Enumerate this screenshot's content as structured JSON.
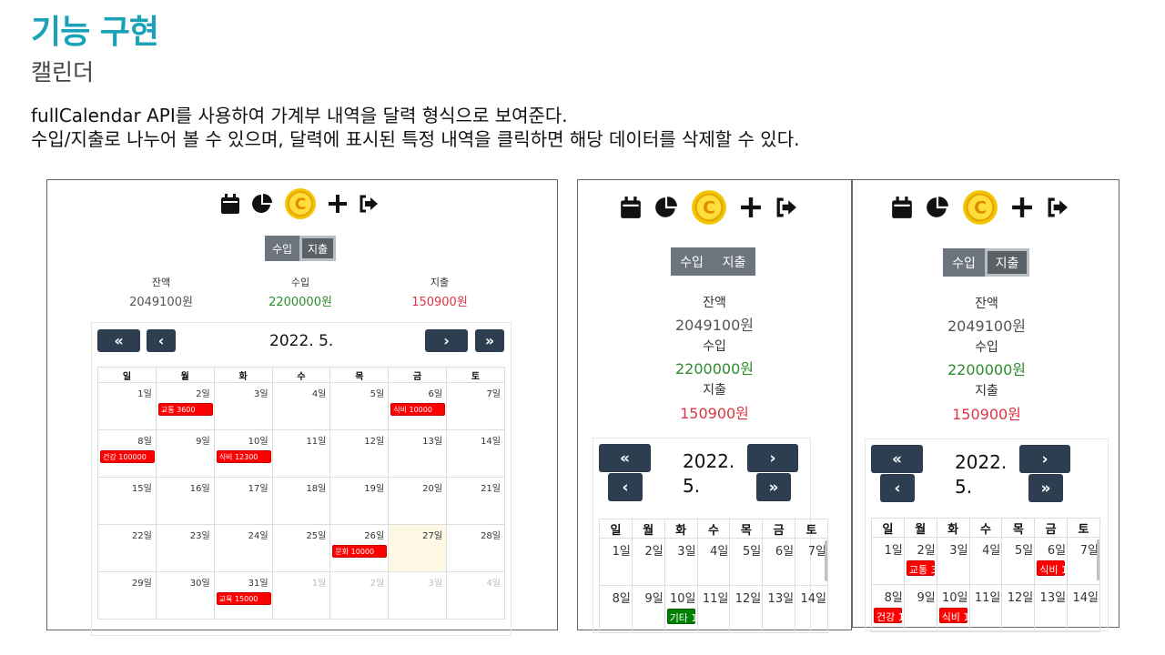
{
  "header": {
    "title": "기능 구현",
    "subtitle": "캘린더",
    "desc_line1": "fullCalendar API를 사용하여 가계부 내역을 달력 형식으로 보여준다.",
    "desc_line2": "수입/지출로 나누어 볼 수 있으며, 달력에 표시된 특정 내역을 클릭하면 해당 데이터를 삭제할 수 있다."
  },
  "icons": [
    "calendar-icon",
    "pie-chart-icon",
    "coin-icon",
    "plus-icon",
    "logout-icon"
  ],
  "toggle": {
    "income": "수입",
    "expense": "지출"
  },
  "stats": {
    "balance_label": "잔액",
    "balance_value": "2049100원",
    "income_label": "수입",
    "income_value": "2200000원",
    "expense_label": "지출",
    "expense_value": "150900원"
  },
  "calendar": {
    "title": "2022. 5.",
    "title_line1": "2022.",
    "title_line2": "5.",
    "btn_prev_year": "«",
    "btn_prev": "‹",
    "btn_next": "›",
    "btn_next_year": "»",
    "weekdays": [
      "일",
      "월",
      "화",
      "수",
      "목",
      "금",
      "토"
    ],
    "weeks": [
      [
        "1일",
        "2일",
        "3일",
        "4일",
        "5일",
        "6일",
        "7일"
      ],
      [
        "8일",
        "9일",
        "10일",
        "11일",
        "12일",
        "13일",
        "14일"
      ],
      [
        "15일",
        "16일",
        "17일",
        "18일",
        "19일",
        "20일",
        "21일"
      ],
      [
        "22일",
        "23일",
        "24일",
        "25일",
        "26일",
        "27일",
        "28일"
      ],
      [
        "29일",
        "30일",
        "31일",
        "1일",
        "2일",
        "3일",
        "4일"
      ]
    ],
    "events_large": {
      "d2": "교통 3600",
      "d6": "식비 10000",
      "d8": "건강 100000",
      "d10": "식비 12300",
      "d26": "문화 10000",
      "d31": "교육 15000"
    },
    "events_mid": {
      "d10": "기타 1"
    },
    "events_right": {
      "d2": "교통 3",
      "d6": "식비 1",
      "d8": "건강 1",
      "d10": "식비 1"
    }
  },
  "colors": {
    "accent": "#1aa3b8",
    "expense": "#dc3545",
    "income": "#2e8b2e",
    "button": "#2c3e50",
    "event": "#ff0000"
  }
}
